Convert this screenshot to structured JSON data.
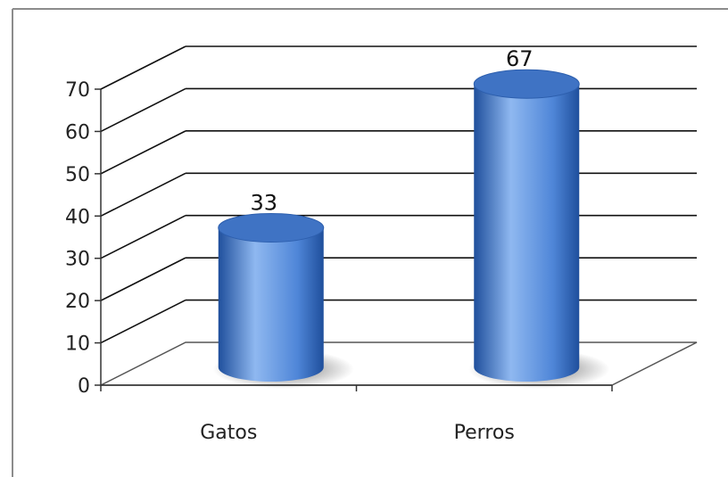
{
  "chart_data": {
    "type": "bar",
    "style": "3d-cylinder",
    "categories": [
      "Gatos",
      "Perros"
    ],
    "values": [
      33,
      67
    ],
    "data_labels": [
      "33",
      "67"
    ],
    "ylim": [
      0,
      70
    ],
    "yticks": [
      "0",
      "10",
      "20",
      "30",
      "40",
      "50",
      "60",
      "70"
    ],
    "grid": true,
    "legend": "none",
    "colors": {
      "bar_light": "#8fb8f0",
      "bar_mid": "#4f86d8",
      "bar_dark": "#1f4f9c",
      "bar_top": "#3f73c4",
      "grid": "#111111",
      "frame": "#8c8c8c"
    }
  }
}
